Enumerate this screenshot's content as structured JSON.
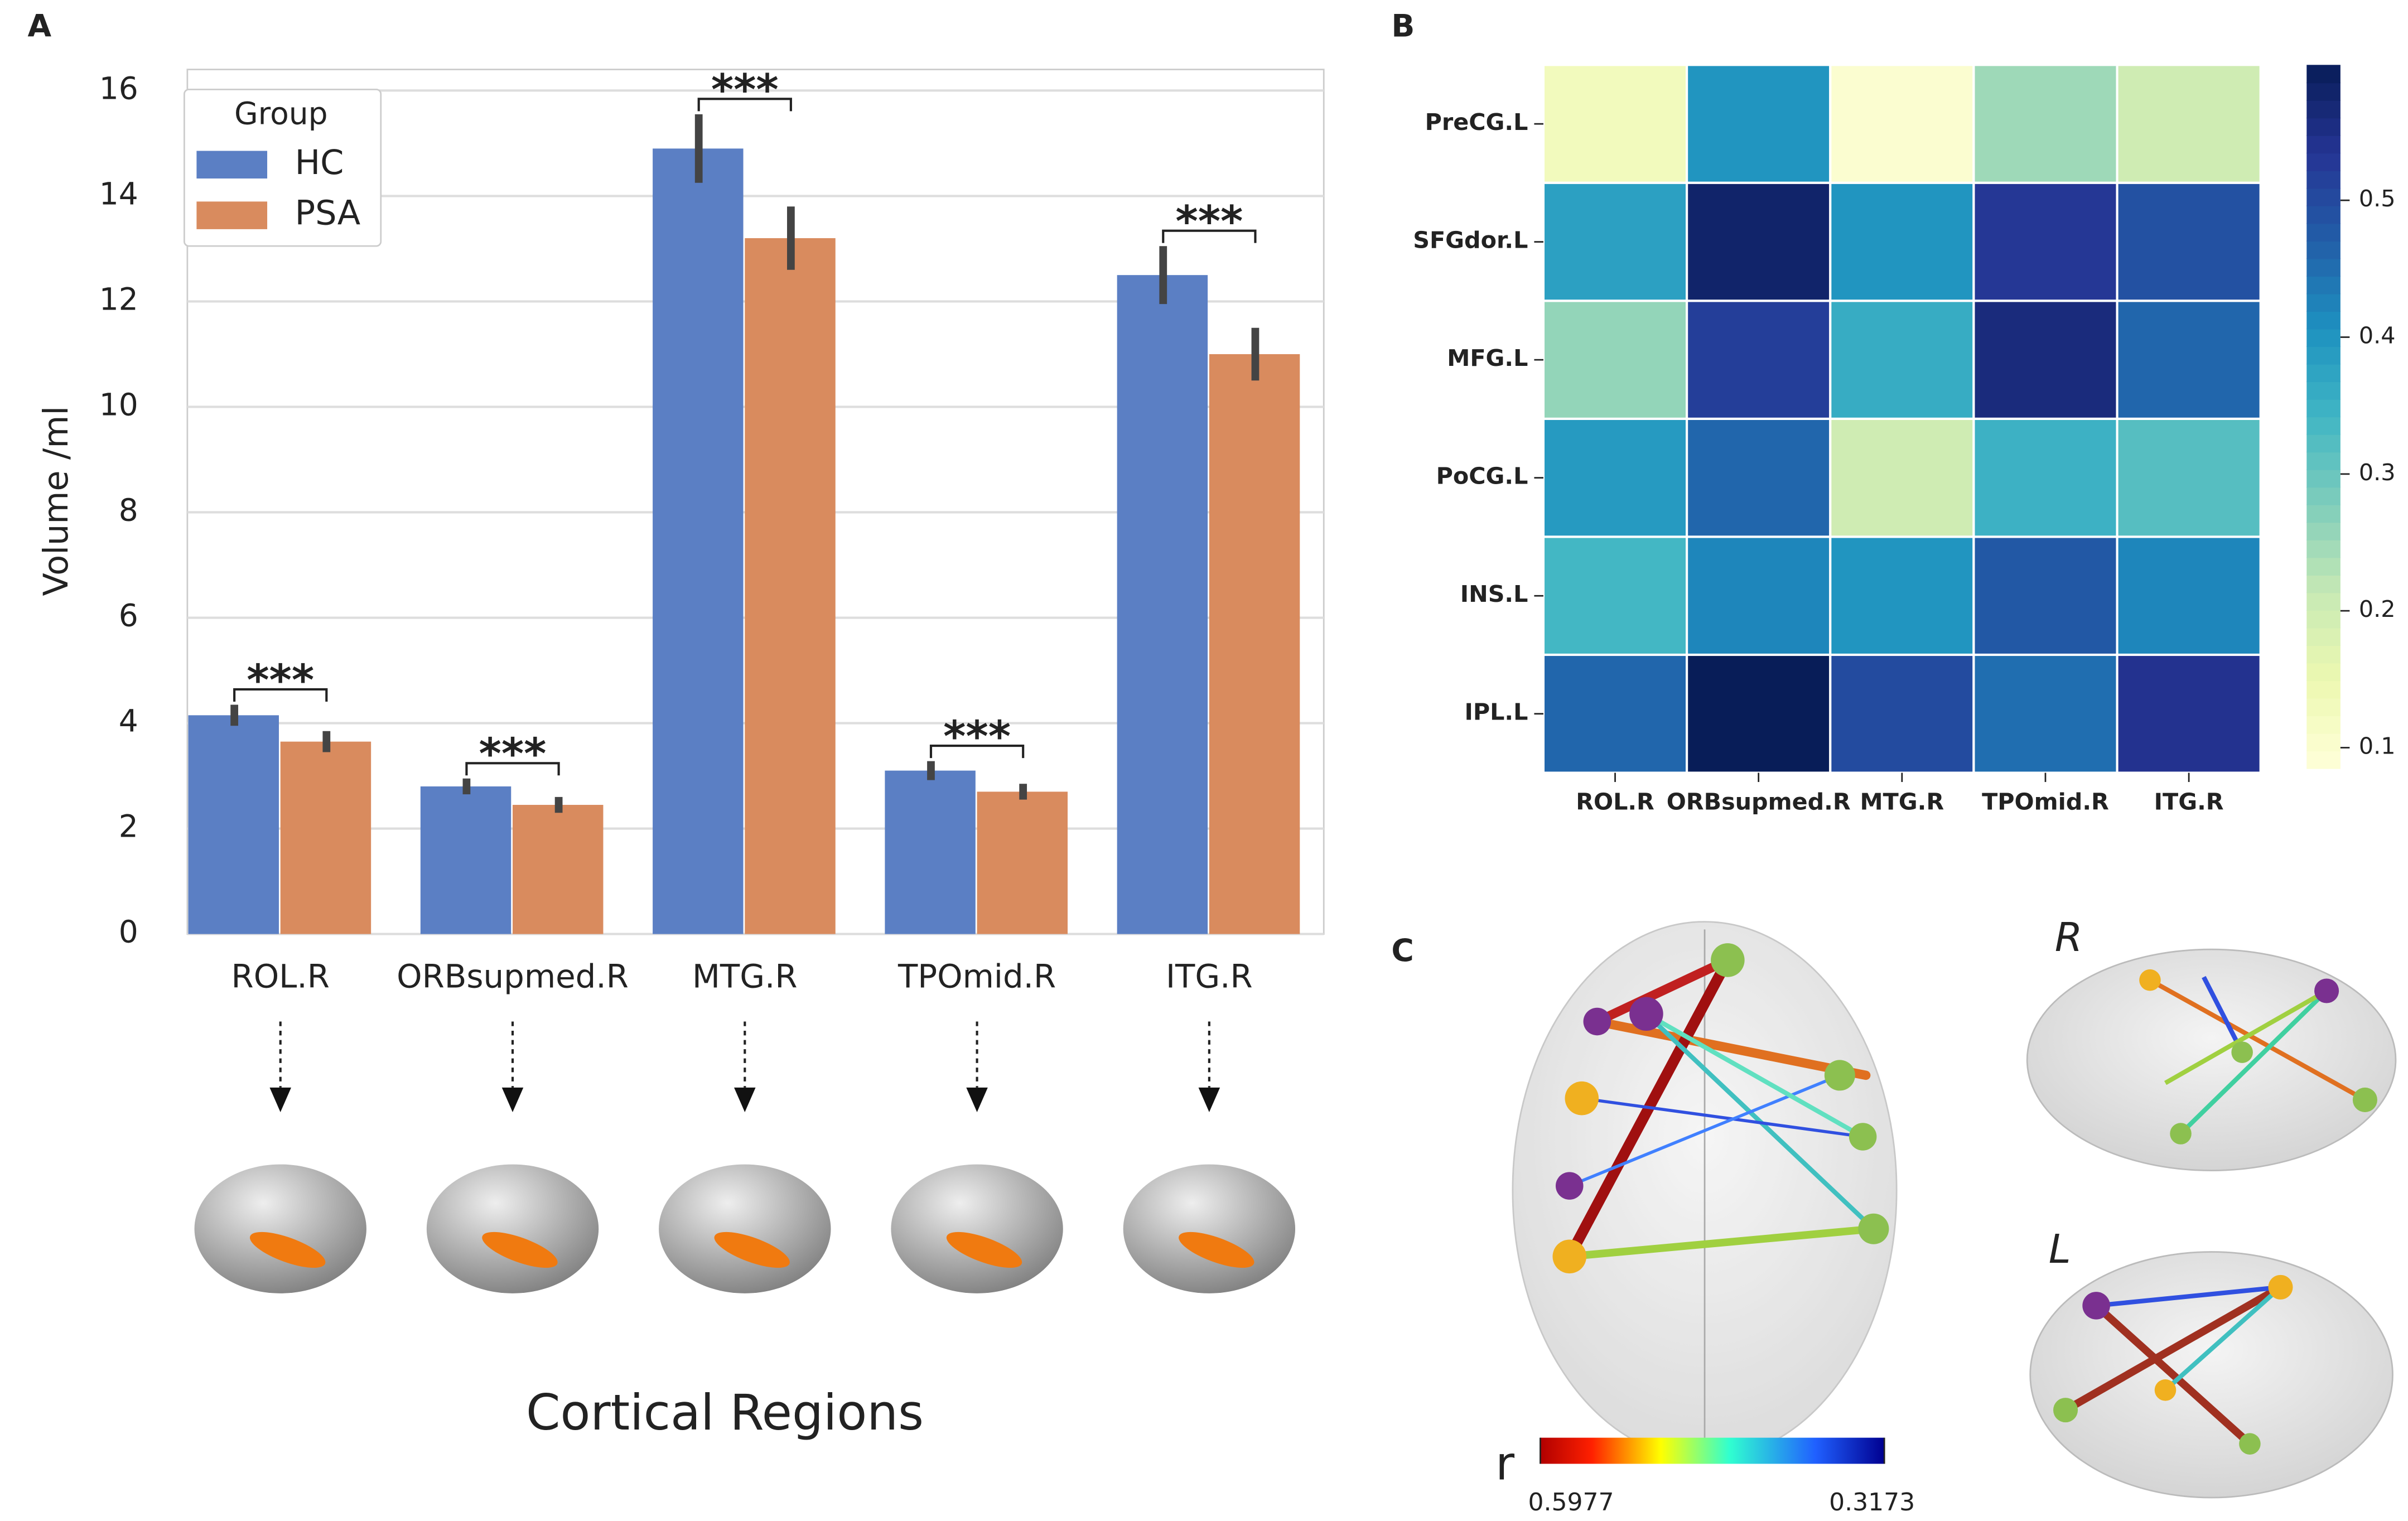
{
  "chart_data": [
    {
      "type": "bar",
      "panel": "A",
      "ylabel": "Volume /ml",
      "xlabel": "Cortical Regions",
      "categories": [
        "ROL.R",
        "ORBsupmed.R",
        "MTG.R",
        "TPOmid.R",
        "ITG.R"
      ],
      "series": [
        {
          "name": "HC",
          "color": "#5b7fc4",
          "values": [
            4.15,
            2.8,
            14.9,
            3.1,
            12.5
          ],
          "errors": [
            0.2,
            0.15,
            0.65,
            0.18,
            0.55
          ]
        },
        {
          "name": "PSA",
          "color": "#d98b5e",
          "values": [
            3.65,
            2.45,
            13.2,
            2.7,
            11.0
          ],
          "errors": [
            0.2,
            0.15,
            0.6,
            0.15,
            0.5
          ]
        }
      ],
      "legend_title": "Group",
      "legend": "upper left",
      "significance": [
        "***",
        "***",
        "***",
        "***",
        "***"
      ],
      "ylim": [
        0,
        16.4
      ],
      "yticks": [
        0,
        2,
        4,
        6,
        8,
        10,
        12,
        14,
        16
      ],
      "grid": true
    },
    {
      "type": "heatmap",
      "panel": "B",
      "colormap": "YlGnBu",
      "rows": [
        "PreCG.L",
        "SFGdor.L",
        "MFG.L",
        "PoCG.L",
        "INS.L",
        "IPL.L"
      ],
      "columns": [
        "ROL.R",
        "ORBsupmed.R",
        "MTG.R",
        "TPOmid.R",
        "ITG.R"
      ],
      "values": [
        [
          0.13,
          0.4,
          0.1,
          0.25,
          0.2
        ],
        [
          0.38,
          0.58,
          0.4,
          0.53,
          0.49
        ],
        [
          0.26,
          0.52,
          0.36,
          0.56,
          0.46
        ],
        [
          0.39,
          0.46,
          0.2,
          0.35,
          0.32
        ],
        [
          0.34,
          0.42,
          0.4,
          0.48,
          0.42
        ],
        [
          0.46,
          0.6,
          0.5,
          0.45,
          0.54
        ]
      ],
      "clim": [
        0.085,
        0.599
      ],
      "cticks": [
        0.1,
        0.2,
        0.3,
        0.4,
        0.5
      ]
    },
    {
      "type": "network",
      "panel": "C",
      "views": [
        "R",
        "L"
      ],
      "colorbar_label": "r",
      "colorbar_ticks": [
        0.5977,
        0.3173
      ]
    }
  ]
}
